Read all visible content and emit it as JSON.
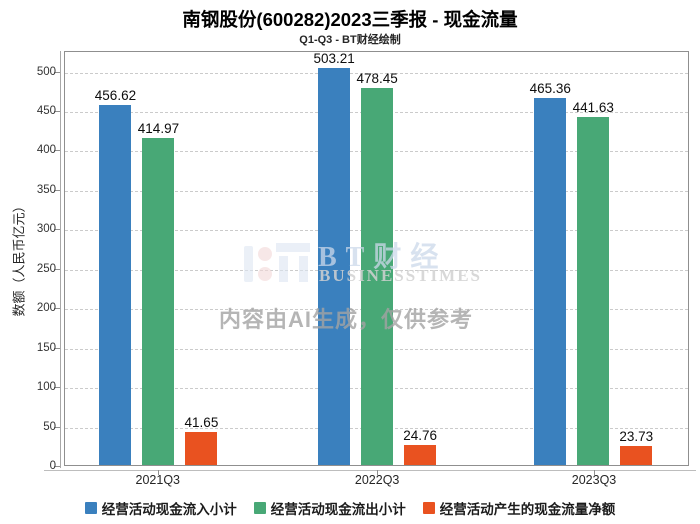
{
  "header": {
    "title": "南钢股份(600282)2023三季报 - 现金流量",
    "subtitle": "Q1-Q3 - BT财经绘制"
  },
  "watermark": {
    "logo_text": "BT财经",
    "logo_subtext": "BUSINESSTIMES",
    "ai_note": "内容由AI生成，仅供参考"
  },
  "chart_data": {
    "type": "bar",
    "title": "南钢股份(600282)2023三季报 - 现金流量",
    "subtitle": "Q1-Q3 - BT财经绘制",
    "categories": [
      "2021Q3",
      "2022Q3",
      "2023Q3"
    ],
    "series": [
      {
        "name": "经营活动现金流入小计",
        "color": "#3A80BE",
        "values": [
          456.62,
          503.21,
          465.36
        ]
      },
      {
        "name": "经营活动现金流出小计",
        "color": "#48A876",
        "values": [
          414.97,
          478.45,
          441.63
        ]
      },
      {
        "name": "经营活动产生的现金流量净额",
        "color": "#E95220",
        "values": [
          41.65,
          24.76,
          23.73
        ]
      }
    ],
    "xlabel": "",
    "ylabel": "数额（人民币亿元）",
    "yticks": [
      0,
      50,
      100,
      150,
      200,
      250,
      300,
      350,
      400,
      450,
      500
    ],
    "ylim": [
      0,
      526
    ],
    "grid": "dashed-horizontal",
    "legend_position": "bottom",
    "group_centers_pct": [
      15.0,
      50.1,
      84.8
    ]
  }
}
